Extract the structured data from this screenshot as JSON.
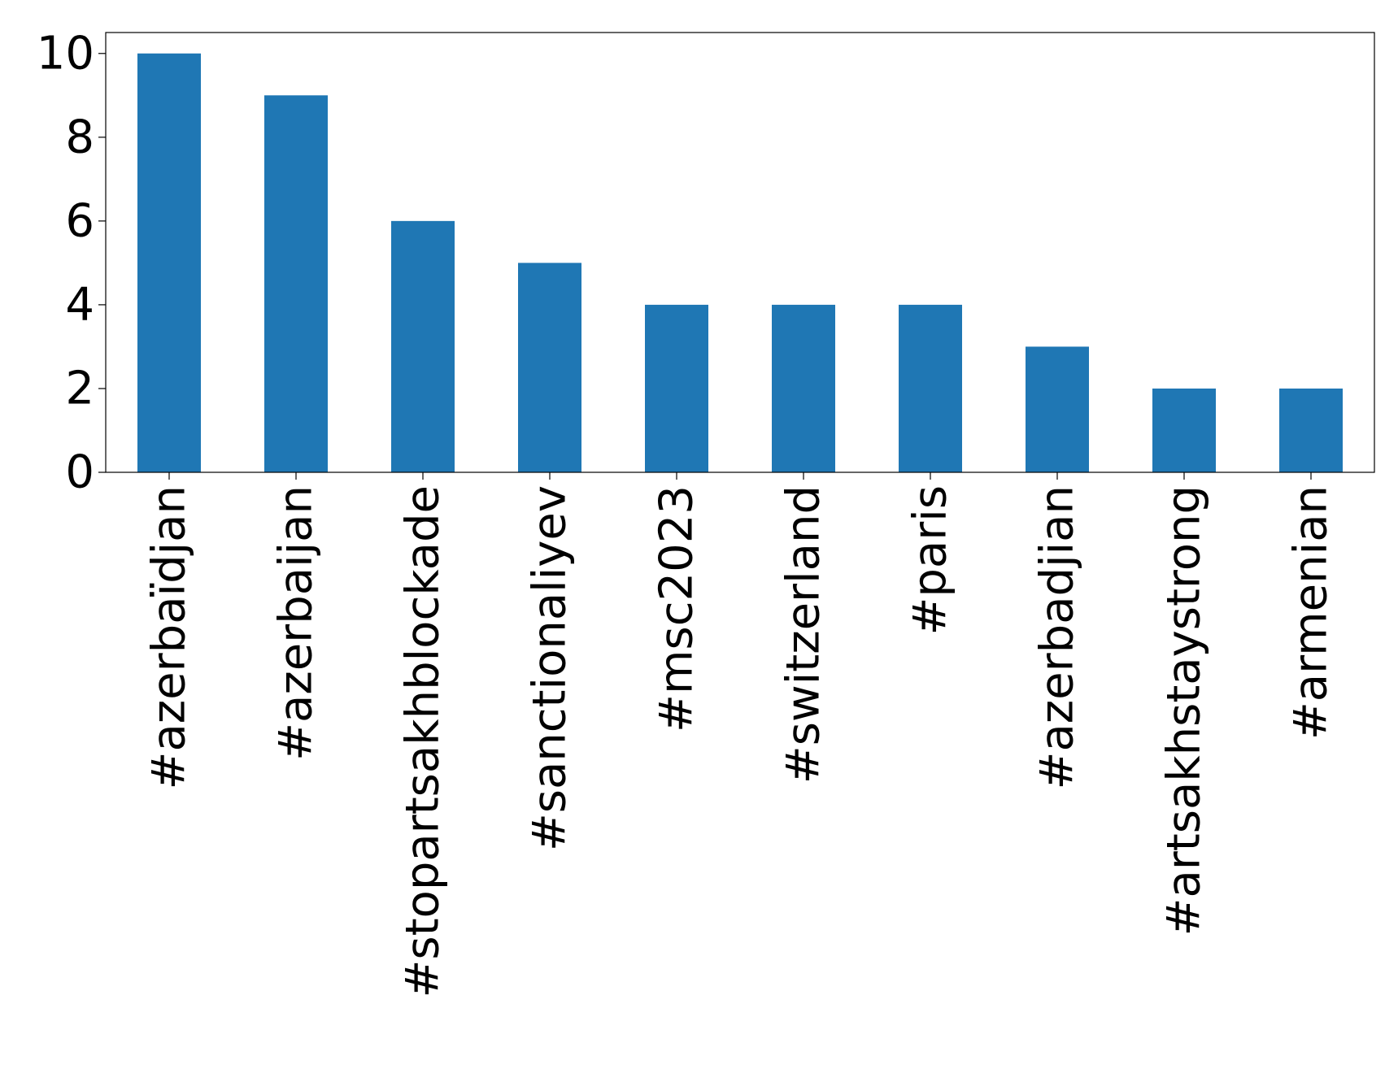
{
  "chart_data": {
    "type": "bar",
    "categories": [
      "#azerbaïdjan",
      "#azerbaijan",
      "#stopartsakhblockade",
      "#sanctionaliyev",
      "#msc2023",
      "#switzerland",
      "#paris",
      "#azerbadjian",
      "#artsakhstaystrong",
      "#armenian"
    ],
    "values": [
      10,
      9,
      6,
      5,
      4,
      4,
      4,
      3,
      2,
      2
    ],
    "ylim": [
      0,
      10.5
    ],
    "yticks": [
      0,
      2,
      4,
      6,
      8,
      10
    ],
    "bar_color": "#1f77b4",
    "grid": false,
    "legend": "none"
  }
}
